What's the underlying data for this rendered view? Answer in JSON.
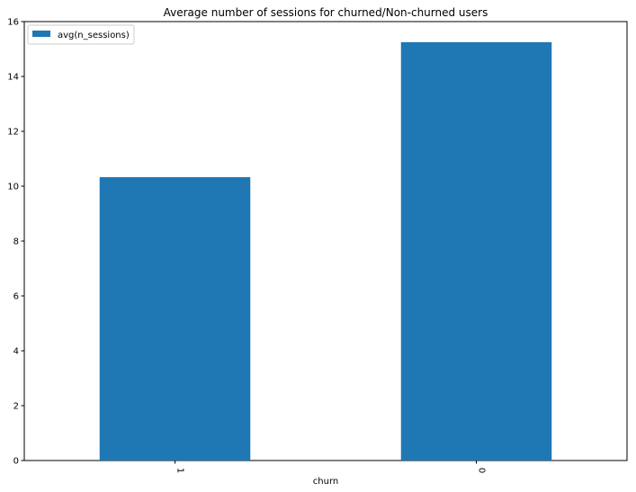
{
  "chart_data": {
    "type": "bar",
    "title": "Average number of sessions for churned/Non-churned users",
    "xlabel": "churn",
    "ylabel": "",
    "categories": [
      "1",
      "0"
    ],
    "series": [
      {
        "name": "avg(n_sessions)",
        "values": [
          10.33,
          15.25
        ]
      }
    ],
    "ylim": [
      0,
      16
    ],
    "yticks": [
      "0",
      "2",
      "4",
      "6",
      "8",
      "10",
      "12",
      "14",
      "16"
    ],
    "legend_position": "top-left",
    "grid": false,
    "colors": {
      "bar": "#1f77b4"
    }
  }
}
